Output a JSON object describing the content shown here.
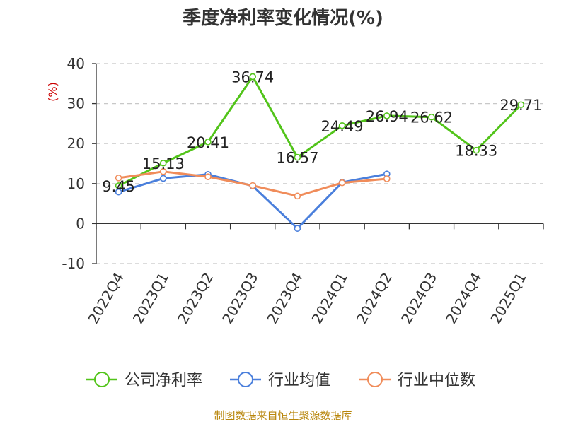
{
  "chart_data": {
    "type": "line",
    "title": "季度净利率变化情况(%)",
    "ylabel": "(%)",
    "categories": [
      "2022Q4",
      "2023Q1",
      "2023Q2",
      "2023Q3",
      "2023Q4",
      "2024Q1",
      "2024Q2",
      "2024Q3",
      "2024Q4",
      "2025Q1"
    ],
    "ylim": [
      -10,
      40
    ],
    "yticks": [
      -10,
      0,
      10,
      20,
      30,
      40
    ],
    "grid": true,
    "legend_position": "bottom",
    "series": [
      {
        "name": "公司净利率",
        "color": "#52c41a",
        "values": [
          9.45,
          15.13,
          20.41,
          36.74,
          16.57,
          24.49,
          26.94,
          26.62,
          18.33,
          29.71
        ],
        "labels": [
          "9.45",
          "15.13",
          "20.41",
          "36.74",
          "16.57",
          "24.49",
          "26.94",
          "26.62",
          "18.33",
          "29.71"
        ]
      },
      {
        "name": "行业均值",
        "color": "#4a7fdc",
        "values": [
          7.9,
          11.3,
          12.3,
          9.4,
          -1.2,
          10.3,
          12.4,
          null,
          null,
          null
        ]
      },
      {
        "name": "行业中位数",
        "color": "#f08c5a",
        "values": [
          11.4,
          13.0,
          11.7,
          9.5,
          6.9,
          10.2,
          11.2,
          null,
          null,
          null
        ]
      }
    ],
    "source": "制图数据来自恒生聚源数据库"
  }
}
